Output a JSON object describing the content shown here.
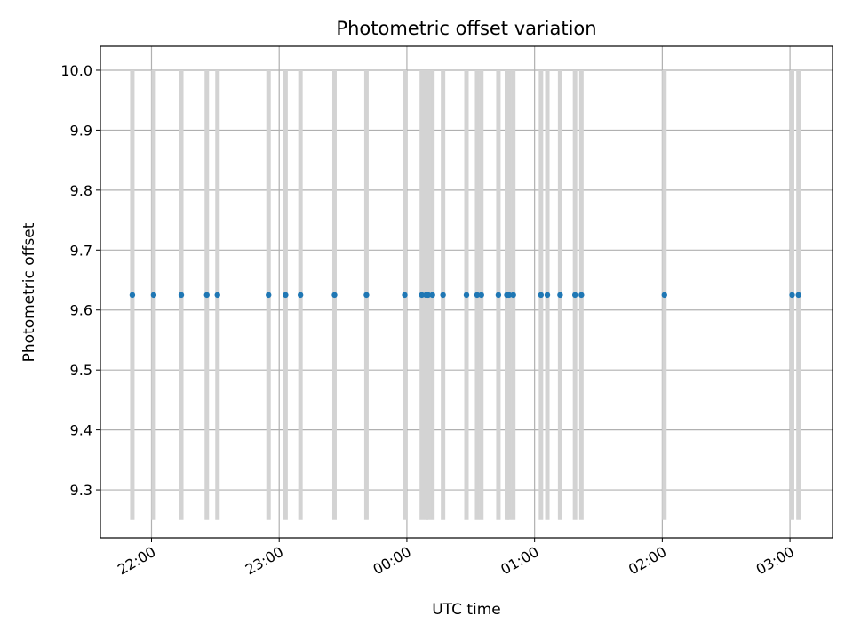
{
  "chart_data": {
    "type": "scatter",
    "title": "Photometric offset variation",
    "xlabel": "UTC time",
    "ylabel": "Photometric offset",
    "x_tick_labels": [
      "22:00",
      "23:00",
      "00:00",
      "01:00",
      "02:00",
      "03:00"
    ],
    "y_tick_labels": [
      "9.3",
      "9.4",
      "9.5",
      "9.6",
      "9.7",
      "9.8",
      "9.9",
      "10.0"
    ],
    "y_ticks": [
      9.3,
      9.4,
      9.5,
      9.6,
      9.7,
      9.8,
      9.9,
      10.0
    ],
    "ylim": [
      9.22,
      10.04
    ],
    "xlim": [
      "21:36",
      "03:20"
    ],
    "grid": true,
    "vertical_band_range": [
      9.25,
      10.0
    ],
    "colors": {
      "points": "#1f77b4",
      "bands": "#d3d3d3",
      "grid": "#b0b0b0"
    },
    "series": [
      {
        "x": [
          "21:51",
          "22:01",
          "22:14",
          "22:26",
          "22:31",
          "22:55",
          "23:03",
          "23:10",
          "23:26",
          "23:41",
          "23:59",
          "00:07",
          "00:09",
          "00:10",
          "00:12",
          "00:17",
          "00:28",
          "00:33",
          "00:35",
          "00:43",
          "00:47",
          "00:48",
          "00:50",
          "01:03",
          "01:06",
          "01:12",
          "01:19",
          "01:22",
          "02:01",
          "03:01",
          "03:04"
        ],
        "y": [
          9.625,
          9.625,
          9.625,
          9.625,
          9.625,
          9.625,
          9.625,
          9.625,
          9.625,
          9.625,
          9.625,
          9.625,
          9.625,
          9.625,
          9.625,
          9.625,
          9.625,
          9.625,
          9.625,
          9.625,
          9.625,
          9.625,
          9.625,
          9.625,
          9.625,
          9.625,
          9.625,
          9.625,
          9.625,
          9.625,
          9.625
        ]
      }
    ]
  }
}
